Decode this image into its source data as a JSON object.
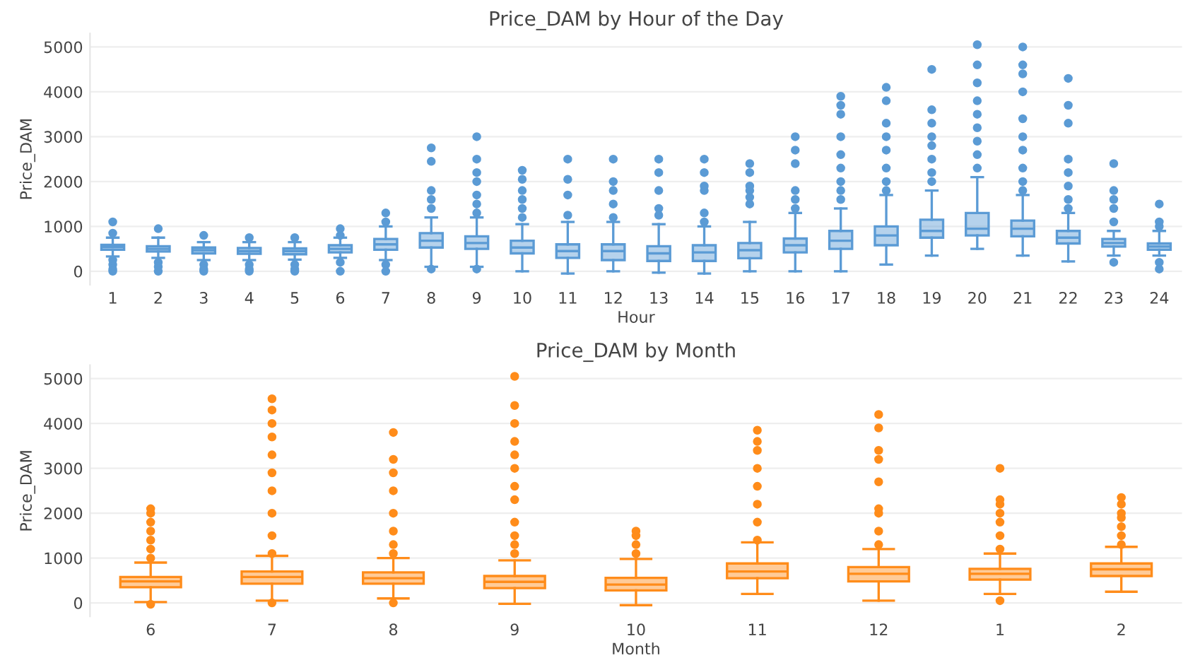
{
  "chart_data": [
    {
      "type": "box",
      "title": "Price_DAM by Hour of the Day",
      "xlabel": "Hour",
      "ylabel": "Price_DAM",
      "color": "#5b9bd5",
      "grid": "y",
      "ylim": [
        -300,
        5300
      ],
      "yticks": [
        0,
        1000,
        2000,
        3000,
        4000,
        5000
      ],
      "categories": [
        "1",
        "2",
        "3",
        "4",
        "5",
        "6",
        "7",
        "8",
        "9",
        "10",
        "11",
        "12",
        "13",
        "14",
        "15",
        "16",
        "17",
        "18",
        "19",
        "20",
        "21",
        "22",
        "23",
        "24"
      ],
      "boxes": [
        {
          "low": 330,
          "q1": 480,
          "median": 540,
          "q3": 590,
          "high": 750,
          "outliers": [
            850,
            1100,
            250,
            150,
            50,
            0
          ]
        },
        {
          "low": 300,
          "q1": 440,
          "median": 500,
          "q3": 560,
          "high": 750,
          "outliers": [
            950,
            200,
            100,
            0
          ]
        },
        {
          "low": 250,
          "q1": 400,
          "median": 470,
          "q3": 530,
          "high": 650,
          "outliers": [
            800,
            150,
            50,
            0
          ]
        },
        {
          "low": 250,
          "q1": 390,
          "median": 450,
          "q3": 520,
          "high": 650,
          "outliers": [
            750,
            150,
            50,
            0
          ]
        },
        {
          "low": 260,
          "q1": 380,
          "median": 450,
          "q3": 510,
          "high": 650,
          "outliers": [
            750,
            150,
            50,
            0
          ]
        },
        {
          "low": 300,
          "q1": 420,
          "median": 500,
          "q3": 580,
          "high": 750,
          "outliers": [
            950,
            800,
            200,
            0
          ]
        },
        {
          "low": 250,
          "q1": 480,
          "median": 600,
          "q3": 720,
          "high": 1000,
          "outliers": [
            1300,
            1100,
            150,
            0
          ]
        },
        {
          "low": 100,
          "q1": 530,
          "median": 680,
          "q3": 850,
          "high": 1200,
          "outliers": [
            1400,
            1600,
            1800,
            2450,
            2750,
            50
          ]
        },
        {
          "low": 100,
          "q1": 500,
          "median": 630,
          "q3": 780,
          "high": 1200,
          "outliers": [
            1300,
            1500,
            1700,
            2000,
            2200,
            2500,
            3000,
            50
          ]
        },
        {
          "low": 0,
          "q1": 400,
          "median": 530,
          "q3": 680,
          "high": 1050,
          "outliers": [
            1200,
            1400,
            1600,
            1800,
            2050,
            2250
          ]
        },
        {
          "low": -50,
          "q1": 300,
          "median": 450,
          "q3": 600,
          "high": 1100,
          "outliers": [
            1250,
            1700,
            2050,
            2500
          ]
        },
        {
          "low": 0,
          "q1": 250,
          "median": 450,
          "q3": 600,
          "high": 1100,
          "outliers": [
            1200,
            1500,
            1800,
            2000,
            2500
          ]
        },
        {
          "low": -30,
          "q1": 230,
          "median": 400,
          "q3": 560,
          "high": 1050,
          "outliers": [
            1250,
            1400,
            1800,
            2200,
            2500
          ]
        },
        {
          "low": -50,
          "q1": 230,
          "median": 420,
          "q3": 580,
          "high": 1000,
          "outliers": [
            1100,
            1300,
            1800,
            1900,
            2200,
            2500
          ]
        },
        {
          "low": 0,
          "q1": 290,
          "median": 470,
          "q3": 630,
          "high": 1100,
          "outliers": [
            1500,
            1650,
            1800,
            1900,
            2200,
            2400
          ]
        },
        {
          "low": 0,
          "q1": 420,
          "median": 580,
          "q3": 730,
          "high": 1300,
          "outliers": [
            1400,
            1600,
            1800,
            2400,
            2700,
            3000
          ]
        },
        {
          "low": 0,
          "q1": 500,
          "median": 680,
          "q3": 900,
          "high": 1400,
          "outliers": [
            1600,
            1800,
            2000,
            2300,
            2600,
            3000,
            3500,
            3700,
            3900
          ]
        },
        {
          "low": 150,
          "q1": 580,
          "median": 800,
          "q3": 1000,
          "high": 1700,
          "outliers": [
            1800,
            2000,
            2300,
            2700,
            3000,
            3300,
            3800,
            4100
          ]
        },
        {
          "low": 350,
          "q1": 750,
          "median": 900,
          "q3": 1150,
          "high": 1800,
          "outliers": [
            2000,
            2200,
            2500,
            2800,
            3000,
            3300,
            3600,
            4500
          ]
        },
        {
          "low": 500,
          "q1": 800,
          "median": 950,
          "q3": 1300,
          "high": 2100,
          "outliers": [
            2300,
            2600,
            2900,
            3200,
            3500,
            3800,
            4200,
            4600,
            5050
          ]
        },
        {
          "low": 350,
          "q1": 780,
          "median": 950,
          "q3": 1130,
          "high": 1700,
          "outliers": [
            1800,
            2000,
            2300,
            2700,
            3000,
            3400,
            4000,
            4400,
            4600,
            5000
          ]
        },
        {
          "low": 220,
          "q1": 620,
          "median": 750,
          "q3": 900,
          "high": 1300,
          "outliers": [
            1400,
            1600,
            1900,
            2200,
            2500,
            3300,
            3700,
            4300
          ]
        },
        {
          "low": 350,
          "q1": 550,
          "median": 630,
          "q3": 720,
          "high": 900,
          "outliers": [
            1100,
            1400,
            1600,
            1800,
            2400,
            200
          ]
        },
        {
          "low": 350,
          "q1": 480,
          "median": 550,
          "q3": 620,
          "high": 900,
          "outliers": [
            1000,
            1100,
            1500,
            200,
            50
          ]
        }
      ]
    },
    {
      "type": "box",
      "title": "Price_DAM by Month",
      "xlabel": "Month",
      "ylabel": "Price_DAM",
      "color": "#ff8c1a",
      "grid": "y",
      "ylim": [
        -300,
        5300
      ],
      "yticks": [
        0,
        1000,
        2000,
        3000,
        4000,
        5000
      ],
      "categories": [
        "6",
        "7",
        "8",
        "9",
        "10",
        "11",
        "12",
        "1",
        "2"
      ],
      "boxes": [
        {
          "low": 20,
          "q1": 350,
          "median": 480,
          "q3": 580,
          "high": 900,
          "outliers": [
            1000,
            1200,
            1400,
            1600,
            1800,
            2000,
            2100,
            -30
          ]
        },
        {
          "low": 50,
          "q1": 430,
          "median": 580,
          "q3": 700,
          "high": 1050,
          "outliers": [
            1100,
            1500,
            2000,
            2500,
            2900,
            3300,
            3700,
            4000,
            4300,
            4550,
            0
          ]
        },
        {
          "low": 100,
          "q1": 430,
          "median": 550,
          "q3": 680,
          "high": 1000,
          "outliers": [
            1100,
            1300,
            1600,
            2000,
            2500,
            2900,
            3200,
            3800,
            0
          ]
        },
        {
          "low": -20,
          "q1": 330,
          "median": 470,
          "q3": 600,
          "high": 950,
          "outliers": [
            1100,
            1300,
            1500,
            1800,
            2300,
            2600,
            3000,
            3300,
            3600,
            4000,
            4400,
            5050
          ]
        },
        {
          "low": -50,
          "q1": 280,
          "median": 410,
          "q3": 560,
          "high": 980,
          "outliers": [
            1100,
            1300,
            1500,
            1600
          ]
        },
        {
          "low": 200,
          "q1": 550,
          "median": 700,
          "q3": 880,
          "high": 1350,
          "outliers": [
            1400,
            1800,
            2200,
            2600,
            3000,
            3400,
            3600,
            3850
          ]
        },
        {
          "low": 50,
          "q1": 480,
          "median": 650,
          "q3": 800,
          "high": 1200,
          "outliers": [
            1300,
            1600,
            2000,
            2100,
            2700,
            3200,
            3400,
            3900,
            4200
          ]
        },
        {
          "low": 200,
          "q1": 520,
          "median": 650,
          "q3": 760,
          "high": 1100,
          "outliers": [
            1200,
            1500,
            1800,
            2000,
            2200,
            2300,
            3000,
            50
          ]
        },
        {
          "low": 250,
          "q1": 600,
          "median": 750,
          "q3": 880,
          "high": 1250,
          "outliers": [
            1300,
            1500,
            1700,
            1900,
            2000,
            2200,
            2350
          ]
        }
      ]
    }
  ]
}
